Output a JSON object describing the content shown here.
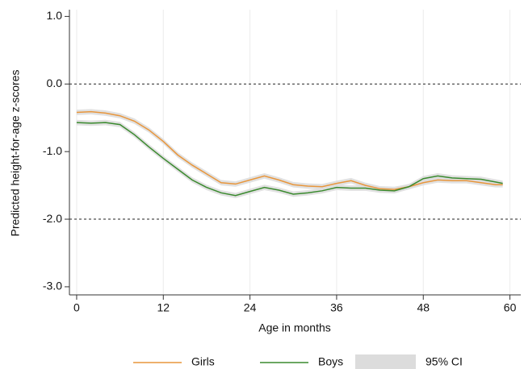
{
  "chart_data": {
    "type": "line",
    "ylabel": "Predicted height-for-age z-scores",
    "xlabel": "Age in months",
    "x": [
      0,
      2,
      4,
      6,
      8,
      10,
      12,
      14,
      16,
      18,
      20,
      22,
      24,
      26,
      28,
      30,
      32,
      34,
      36,
      38,
      40,
      42,
      44,
      46,
      48,
      50,
      52,
      54,
      56,
      58,
      59
    ],
    "series": [
      {
        "name": "Girls",
        "color": "#e8963c",
        "ci_halfwidth": 0.04,
        "values": [
          -0.42,
          -0.41,
          -0.43,
          -0.47,
          -0.55,
          -0.68,
          -0.85,
          -1.05,
          -1.2,
          -1.33,
          -1.46,
          -1.48,
          -1.42,
          -1.36,
          -1.42,
          -1.49,
          -1.51,
          -1.52,
          -1.47,
          -1.43,
          -1.5,
          -1.55,
          -1.56,
          -1.52,
          -1.46,
          -1.42,
          -1.43,
          -1.43,
          -1.46,
          -1.49,
          -1.49
        ]
      },
      {
        "name": "Boys",
        "color": "#3a8a2e",
        "ci_halfwidth": 0.04,
        "values": [
          -0.57,
          -0.58,
          -0.57,
          -0.6,
          -0.75,
          -0.93,
          -1.1,
          -1.26,
          -1.42,
          -1.53,
          -1.61,
          -1.65,
          -1.59,
          -1.53,
          -1.57,
          -1.63,
          -1.61,
          -1.58,
          -1.53,
          -1.54,
          -1.54,
          -1.57,
          -1.58,
          -1.52,
          -1.4,
          -1.36,
          -1.39,
          -1.4,
          -1.41,
          -1.45,
          -1.47
        ]
      }
    ],
    "ci": {
      "name": "95% CI",
      "color": "#dcdcdc"
    },
    "hlines": [
      0,
      -2
    ],
    "xlim": [
      -1,
      61.5
    ],
    "ylim": [
      -3.12,
      1.1
    ],
    "xticks": [
      0,
      12,
      24,
      36,
      48,
      60
    ],
    "yticks": [
      {
        "value": 1,
        "label": "1.0"
      },
      {
        "value": 0,
        "label": "0.0"
      },
      {
        "value": -1,
        "label": "-1.0"
      },
      {
        "value": -2,
        "label": "-2.0"
      },
      {
        "value": -3,
        "label": "-3.0"
      }
    ],
    "grid": true
  }
}
